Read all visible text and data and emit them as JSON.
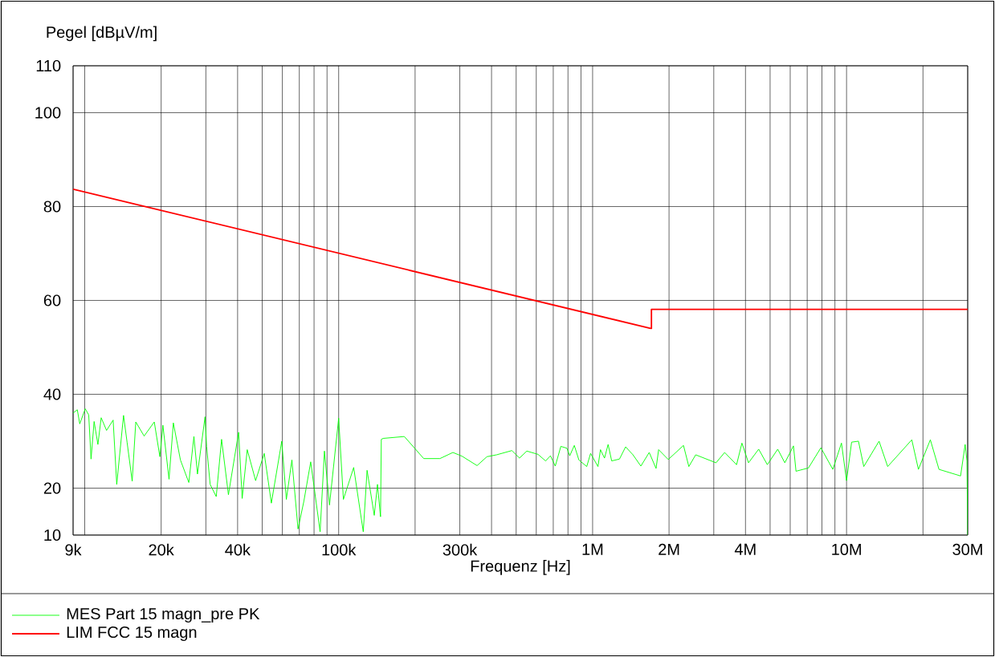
{
  "chart_data": {
    "type": "line",
    "ylabel": "Pegel [dBµV/m]",
    "xlabel": "Frequenz [Hz]",
    "log": "x",
    "grid": true,
    "legend": "bottom",
    "xlim": [
      9000,
      30000000
    ],
    "ylim": [
      10,
      110
    ],
    "yticks": [
      10,
      20,
      40,
      60,
      80,
      100,
      110
    ],
    "xticks": [
      {
        "value": 9000,
        "label": "9k"
      },
      {
        "value": 10000,
        "label": null
      },
      {
        "value": 20000,
        "label": "20k"
      },
      {
        "value": 30000,
        "label": null
      },
      {
        "value": 40000,
        "label": "40k"
      },
      {
        "value": 50000,
        "label": null
      },
      {
        "value": 60000,
        "label": null
      },
      {
        "value": 70000,
        "label": null
      },
      {
        "value": 80000,
        "label": null
      },
      {
        "value": 90000,
        "label": null
      },
      {
        "value": 100000,
        "label": "100k"
      },
      {
        "value": 200000,
        "label": null
      },
      {
        "value": 300000,
        "label": "300k"
      },
      {
        "value": 400000,
        "label": null
      },
      {
        "value": 500000,
        "label": null
      },
      {
        "value": 600000,
        "label": null
      },
      {
        "value": 700000,
        "label": null
      },
      {
        "value": 800000,
        "label": null
      },
      {
        "value": 900000,
        "label": null
      },
      {
        "value": 1000000,
        "label": "1M"
      },
      {
        "value": 2000000,
        "label": "2M"
      },
      {
        "value": 3000000,
        "label": null
      },
      {
        "value": 4000000,
        "label": "4M"
      },
      {
        "value": 5000000,
        "label": null
      },
      {
        "value": 6000000,
        "label": null
      },
      {
        "value": 7000000,
        "label": null
      },
      {
        "value": 8000000,
        "label": null
      },
      {
        "value": 9000000,
        "label": null
      },
      {
        "value": 10000000,
        "label": "10M"
      },
      {
        "value": 20000000,
        "label": null
      },
      {
        "value": 30000000,
        "label": "30M"
      }
    ],
    "series": [
      {
        "name": "MES  Part 15 magn_pre PK",
        "color": "#00ff00",
        "x": [
          9000,
          9350,
          9560,
          10050,
          10370,
          10590,
          10890,
          11270,
          11610,
          12190,
          12940,
          13370,
          14220,
          14690,
          15380,
          15890,
          17140,
          18790,
          19770,
          20320,
          21480,
          22340,
          23820,
          25700,
          26920,
          27800,
          29780,
          30200,
          31190,
          32960,
          34590,
          36810,
          40370,
          41690,
          43650,
          47100,
          50930,
          54330,
          59700,
          62230,
          65460,
          69180,
          72950,
          77620,
          84530,
          87900,
          92040,
          100000,
          104400,
          114600,
          125000,
          129400,
          138100,
          142200,
          146200,
          147200,
          149700,
          181400,
          216300,
          250500,
          281800,
          306200,
          350800,
          383700,
          418800,
          480800,
          515200,
          550800,
          609500,
          653100,
          682300,
          712900,
          749900,
          792500,
          812800,
          847200,
          883100,
          948400,
          981800,
          1050000,
          1074000,
          1114000,
          1151000,
          1189000,
          1276000,
          1349000,
          1442000,
          1549000,
          1671000,
          1778000,
          1820000,
          1986000,
          2280000,
          2393000,
          2547000,
          3062000,
          3311000,
          3690000,
          3873000,
          4111000,
          4508000,
          4875000,
          5358000,
          5715000,
          6180000,
          6324000,
          7079000,
          7925000,
          8831000,
          9550000,
          10000000,
          10470000,
          11140000,
          11690000,
          13430000,
          14520000,
          18070000,
          19190000,
          21380000,
          23120000,
          28120000,
          29310000,
          29800000,
          30000000
        ],
        "values": [
          36.0,
          36.7,
          33.7,
          36.9,
          35.6,
          26.2,
          34.2,
          29.3,
          35.0,
          32.3,
          34.5,
          20.8,
          35.5,
          29.7,
          21.5,
          34.1,
          31.1,
          34.1,
          26.7,
          33.4,
          21.9,
          33.9,
          26.0,
          21.2,
          31.0,
          23.0,
          35.2,
          28.9,
          20.8,
          18.2,
          30.4,
          18.6,
          31.9,
          17.8,
          28.2,
          21.6,
          27.4,
          16.8,
          30.0,
          17.6,
          26.0,
          11.3,
          17.2,
          25.6,
          10.7,
          27.9,
          16.4,
          34.9,
          17.6,
          24.4,
          10.7,
          23.8,
          14.2,
          20.8,
          13.9,
          30.4,
          30.6,
          31.0,
          26.3,
          26.3,
          27.6,
          26.8,
          24.8,
          26.7,
          27.1,
          28.0,
          26.4,
          27.9,
          27.2,
          25.8,
          26.9,
          24.7,
          28.9,
          28.5,
          26.9,
          29.1,
          26.0,
          24.6,
          27.4,
          24.6,
          28.2,
          26.4,
          29.3,
          25.8,
          26.2,
          28.8,
          27.1,
          24.7,
          27.6,
          24.2,
          28.2,
          26.1,
          29.1,
          24.6,
          27.1,
          25.4,
          27.6,
          25.0,
          29.6,
          25.4,
          28.3,
          25.0,
          28.3,
          25.4,
          29.0,
          23.6,
          24.3,
          28.6,
          24.0,
          29.6,
          21.6,
          29.8,
          30.0,
          24.6,
          30.0,
          24.6,
          30.3,
          24.0,
          30.3,
          24.0,
          22.6,
          29.3,
          25.8,
          10.0
        ]
      },
      {
        "name": "LIM  FCC 15 magn",
        "color": "#ff0000",
        "x": [
          9000,
          1705000,
          1705000,
          30000000
        ],
        "values": [
          83.7,
          54.0,
          58.1,
          58.1
        ]
      }
    ]
  }
}
